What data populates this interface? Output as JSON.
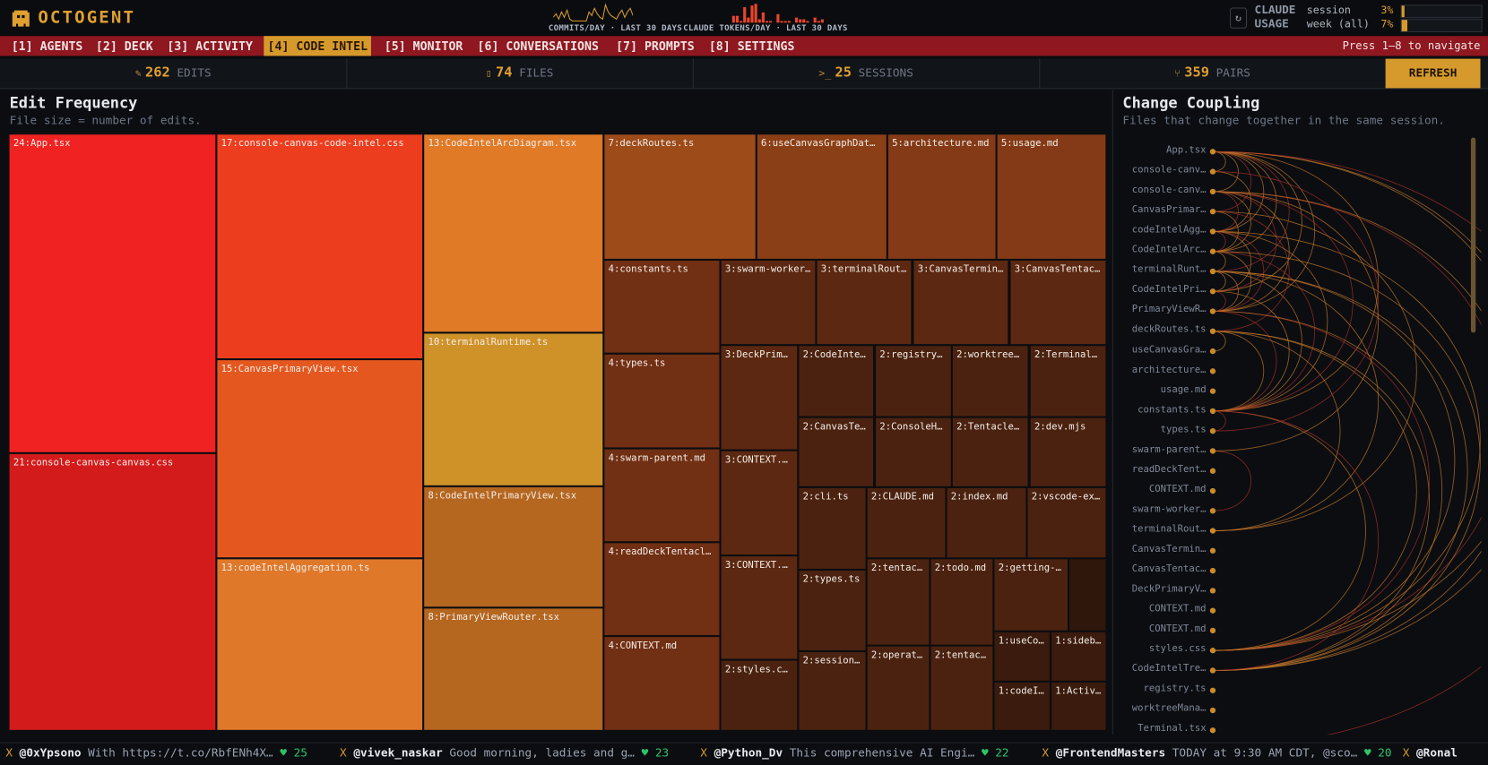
{
  "app": {
    "title": "OCTOGENT",
    "logo_icon": "ghost-icon"
  },
  "header": {
    "commits_label": "COMMITS/DAY · LAST 30 DAYS",
    "tokens_label": "CLAUDE TOKENS/DAY · LAST 30 DAYS",
    "commits_per_day": [
      3,
      5,
      2,
      6,
      3,
      7,
      2,
      1,
      1,
      1,
      1,
      1,
      1,
      6,
      4,
      8,
      5,
      3,
      2,
      10,
      6,
      4,
      3,
      2,
      5,
      7,
      3,
      6,
      8,
      4
    ],
    "tokens_per_day": [
      0,
      0,
      0,
      0,
      0,
      4,
      4,
      1,
      9,
      3,
      10,
      11,
      2,
      6,
      1,
      1,
      0,
      5,
      1,
      1,
      1,
      0,
      3,
      2,
      2,
      1,
      0,
      3,
      1,
      2
    ],
    "usage_title_1": "CLAUDE",
    "usage_title_2": "USAGE",
    "refresh_icon": "refresh-icon",
    "session_label": "session",
    "session_pct": "3%",
    "session_value": 3,
    "week_label": "week (all)",
    "week_pct": "7%",
    "week_value": 7
  },
  "nav": {
    "tabs": [
      {
        "label": "[1] AGENTS"
      },
      {
        "label": "[2] DECK"
      },
      {
        "label": "[3] ACTIVITY"
      },
      {
        "label": "[4] CODE INTEL",
        "active": true
      },
      {
        "label": "[5] MONITOR"
      },
      {
        "label": "[6] CONVERSATIONS"
      },
      {
        "label": "[7] PROMPTS"
      },
      {
        "label": "[8] SETTINGS"
      }
    ],
    "hint": "Press 1–8 to navigate"
  },
  "stats": [
    {
      "icon": "pencil-icon",
      "value": "262",
      "label": "EDITS"
    },
    {
      "icon": "file-icon",
      "value": "74",
      "label": "FILES"
    },
    {
      "icon": "terminal-icon",
      "value": "25",
      "label": "SESSIONS"
    },
    {
      "icon": "branch-icon",
      "value": "359",
      "label": "PAIRS"
    }
  ],
  "refresh_label": "REFRESH",
  "edit_frequency": {
    "title": "Edit Frequency",
    "subtitle": "File size = number of edits.",
    "cells": [
      {
        "label": "24:App.tsx",
        "count": 24
      },
      {
        "label": "21:console-canvas-canvas.css",
        "count": 21
      },
      {
        "label": "17:console-canvas-code-intel.css",
        "count": 17
      },
      {
        "label": "15:CanvasPrimaryView.tsx",
        "count": 15
      },
      {
        "label": "13:codeIntelAggregation.ts",
        "count": 13
      },
      {
        "label": "13:CodeIntelArcDiagram.tsx",
        "count": 13
      },
      {
        "label": "10:terminalRuntime.ts",
        "count": 10
      },
      {
        "label": "8:CodeIntelPrimaryView.tsx",
        "count": 8
      },
      {
        "label": "8:PrimaryViewRouter.tsx",
        "count": 8
      },
      {
        "label": "7:deckRoutes.ts",
        "count": 7
      },
      {
        "label": "6:useCanvasGraphDat…",
        "count": 6
      },
      {
        "label": "5:architecture.md",
        "count": 5
      },
      {
        "label": "5:usage.md",
        "count": 5
      },
      {
        "label": "4:constants.ts",
        "count": 4
      },
      {
        "label": "4:types.ts",
        "count": 4
      },
      {
        "label": "4:swarm-parent.md",
        "count": 4
      },
      {
        "label": "4:readDeckTentacl…",
        "count": 4
      },
      {
        "label": "4:CONTEXT.md",
        "count": 4
      },
      {
        "label": "3:swarm-worker…",
        "count": 3
      },
      {
        "label": "3:terminalRout…",
        "count": 3
      },
      {
        "label": "3:CanvasTermin…",
        "count": 3
      },
      {
        "label": "3:CanvasTentac…",
        "count": 3
      },
      {
        "label": "3:DeckPrim…",
        "count": 3
      },
      {
        "label": "3:CONTEXT.…",
        "count": 3
      },
      {
        "label": "3:CONTEXT.…",
        "count": 3
      },
      {
        "label": "2:styles.c…",
        "count": 2
      },
      {
        "label": "2:CodeInte…",
        "count": 2
      },
      {
        "label": "2:registry…",
        "count": 2
      },
      {
        "label": "2:worktree…",
        "count": 2
      },
      {
        "label": "2:Terminal…",
        "count": 2
      },
      {
        "label": "2:CanvasTe…",
        "count": 2
      },
      {
        "label": "2:ConsoleH…",
        "count": 2
      },
      {
        "label": "2:Tentacle…",
        "count": 2
      },
      {
        "label": "2:dev.mjs",
        "count": 2
      },
      {
        "label": "2:cli.ts",
        "count": 2
      },
      {
        "label": "2:types.ts",
        "count": 2
      },
      {
        "label": "2:session…",
        "count": 2
      },
      {
        "label": "2:CLAUDE.md",
        "count": 2
      },
      {
        "label": "2:index.md",
        "count": 2
      },
      {
        "label": "2:vscode-ex…",
        "count": 2
      },
      {
        "label": "2:tentac…",
        "count": 2
      },
      {
        "label": "2:todo.md",
        "count": 2
      },
      {
        "label": "2:getting-…",
        "count": 2
      },
      {
        "label": "2:operat…",
        "count": 2
      },
      {
        "label": "2:tentac…",
        "count": 2
      },
      {
        "label": "",
        "count": 2
      },
      {
        "label": "1:useCo…",
        "count": 1
      },
      {
        "label": "1:sideb…",
        "count": 1
      },
      {
        "label": "1:codeI…",
        "count": 1
      },
      {
        "label": "1:Activ…",
        "count": 1
      }
    ]
  },
  "change_coupling": {
    "title": "Change Coupling",
    "subtitle": "Files that change together in the same session.",
    "files": [
      "App.tsx",
      "console-canv…",
      "console-canv…",
      "CanvasPrimar…",
      "codeIntelAgg…",
      "CodeIntelArc…",
      "terminalRunt…",
      "CodeIntelPri…",
      "PrimaryViewR…",
      "deckRoutes.ts",
      "useCanvasGra…",
      "architecture…",
      "usage.md",
      "constants.ts",
      "types.ts",
      "swarm-parent…",
      "readDeckTent…",
      "CONTEXT.md",
      "swarm-worker…",
      "terminalRout…",
      "CanvasTermin…",
      "CanvasTentac…",
      "DeckPrimaryV…",
      "CONTEXT.md",
      "CONTEXT.md",
      "styles.css",
      "CodeIntelTre…",
      "registry.ts",
      "worktreeMana…",
      "Terminal.tsx"
    ],
    "pairs": [
      [
        0,
        1
      ],
      [
        0,
        2
      ],
      [
        0,
        3
      ],
      [
        0,
        4
      ],
      [
        0,
        5
      ],
      [
        0,
        6
      ],
      [
        0,
        7
      ],
      [
        0,
        8
      ],
      [
        0,
        13
      ],
      [
        0,
        25
      ],
      [
        0,
        26
      ],
      [
        0,
        30
      ],
      [
        1,
        4
      ],
      [
        2,
        4
      ],
      [
        2,
        5
      ],
      [
        2,
        7
      ],
      [
        2,
        8
      ],
      [
        2,
        13
      ],
      [
        2,
        25
      ],
      [
        2,
        26
      ],
      [
        3,
        5
      ],
      [
        3,
        9
      ],
      [
        4,
        5
      ],
      [
        4,
        7
      ],
      [
        4,
        8
      ],
      [
        4,
        13
      ],
      [
        4,
        25
      ],
      [
        5,
        6
      ],
      [
        5,
        8
      ],
      [
        5,
        13
      ],
      [
        5,
        26
      ],
      [
        6,
        7
      ],
      [
        6,
        8
      ],
      [
        6,
        13
      ],
      [
        6,
        19
      ],
      [
        6,
        25
      ],
      [
        6,
        26
      ],
      [
        7,
        8
      ],
      [
        7,
        13
      ],
      [
        8,
        13
      ],
      [
        8,
        25
      ],
      [
        8,
        26
      ],
      [
        9,
        10
      ],
      [
        9,
        13
      ],
      [
        9,
        19
      ],
      [
        9,
        26
      ],
      [
        13,
        14
      ],
      [
        13,
        25
      ],
      [
        13,
        26
      ],
      [
        15,
        18
      ],
      [
        2,
        15
      ],
      [
        1,
        14
      ],
      [
        3,
        19
      ],
      [
        9,
        25
      ]
    ],
    "dot_color": "#c98a2a"
  },
  "ticker": [
    {
      "handle": "@0xYpsono",
      "text": "With https://t.co/RbfENh4X…",
      "likes": "25"
    },
    {
      "handle": "@vivek_naskar",
      "text": "Good morning, ladies and g…",
      "likes": "23"
    },
    {
      "handle": "@Python_Dv",
      "text": "This comprehensive AI Engi…",
      "likes": "22"
    },
    {
      "handle": "@FrontendMasters",
      "text": "TODAY at 9:30 AM CDT, @sco…",
      "likes": "20"
    },
    {
      "handle": "@Ronal",
      "text": "",
      "likes": ""
    }
  ],
  "colors": {
    "accent": "#d69a2c",
    "nav_bg": "#8e1720",
    "bg": "#0b0d11"
  }
}
